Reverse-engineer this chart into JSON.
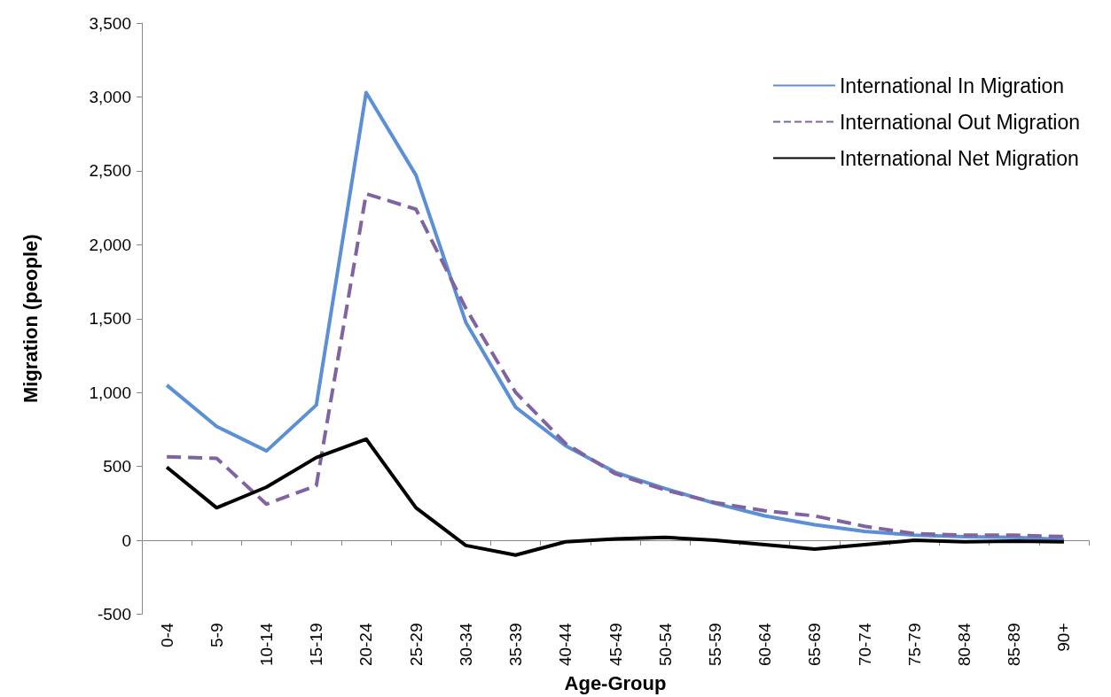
{
  "chart_data": {
    "type": "line",
    "xlabel": "Age-Group",
    "ylabel": "Migration (people)",
    "categories": [
      "0-4",
      "5-9",
      "10-14",
      "15-19",
      "20-24",
      "25-29",
      "30-34",
      "35-39",
      "40-44",
      "45-49",
      "50-54",
      "55-59",
      "60-64",
      "65-69",
      "70-74",
      "75-79",
      "80-84",
      "85-89",
      "90+"
    ],
    "series": [
      {
        "name": "International In Migration",
        "color": "#5b8fd6",
        "line_style": "solid",
        "values": [
          1050,
          770,
          605,
          915,
          3030,
          2470,
          1475,
          900,
          640,
          460,
          350,
          250,
          165,
          105,
          60,
          35,
          25,
          20,
          5
        ]
      },
      {
        "name": "International Out Migration",
        "color": "#8064a2",
        "line_style": "dashed",
        "values": [
          565,
          555,
          245,
          370,
          2345,
          2240,
          1570,
          1000,
          655,
          450,
          340,
          255,
          200,
          165,
          95,
          45,
          35,
          35,
          25
        ]
      },
      {
        "name": "International Net Migration",
        "color": "#000000",
        "line_style": "solid",
        "values": [
          495,
          220,
          360,
          560,
          685,
          220,
          -35,
          -100,
          -10,
          10,
          20,
          0,
          -30,
          -60,
          -30,
          0,
          -10,
          -5,
          -10
        ]
      }
    ],
    "ylim": [
      -500,
      3500
    ],
    "yticks": [
      -500,
      0,
      500,
      {
        "value": 1000,
        "label": "1,000"
      },
      {
        "value": 1500,
        "label": "1,500"
      },
      {
        "value": 2000,
        "label": "2,000"
      },
      {
        "value": 2500,
        "label": "2,500"
      },
      {
        "value": 3000,
        "label": "3,000"
      },
      {
        "value": 3500,
        "label": "3,500"
      }
    ],
    "legend": "top right",
    "marker": "none"
  }
}
